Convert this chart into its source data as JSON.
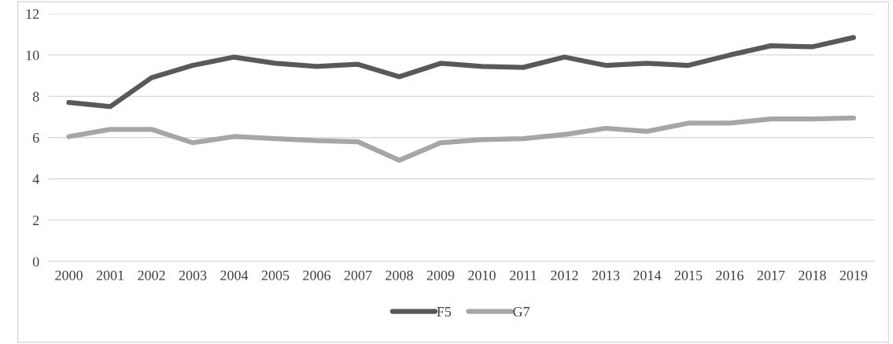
{
  "chart_data": {
    "type": "line",
    "categories": [
      "2000",
      "2001",
      "2002",
      "2003",
      "2004",
      "2005",
      "2006",
      "2007",
      "2008",
      "2009",
      "2010",
      "2011",
      "2012",
      "2013",
      "2014",
      "2015",
      "2016",
      "2017",
      "2018",
      "2019"
    ],
    "series": [
      {
        "name": "F5",
        "color": "#595959",
        "values": [
          7.7,
          7.5,
          8.9,
          9.5,
          9.9,
          9.6,
          9.45,
          9.55,
          8.95,
          9.6,
          9.45,
          9.4,
          9.9,
          9.5,
          9.6,
          9.5,
          10.0,
          10.45,
          10.4,
          10.85
        ]
      },
      {
        "name": "G7",
        "color": "#a6a6a6",
        "values": [
          6.05,
          6.4,
          6.4,
          5.75,
          6.05,
          5.95,
          5.85,
          5.8,
          4.9,
          5.75,
          5.9,
          5.95,
          6.15,
          6.45,
          6.3,
          6.7,
          6.7,
          6.9,
          6.9,
          6.95
        ]
      }
    ],
    "ylim": [
      0,
      12
    ],
    "yticks": [
      0,
      2,
      4,
      6,
      8,
      10,
      12
    ],
    "grid": "y",
    "legend": "bottom",
    "marker": "none",
    "line_style": "solid"
  }
}
